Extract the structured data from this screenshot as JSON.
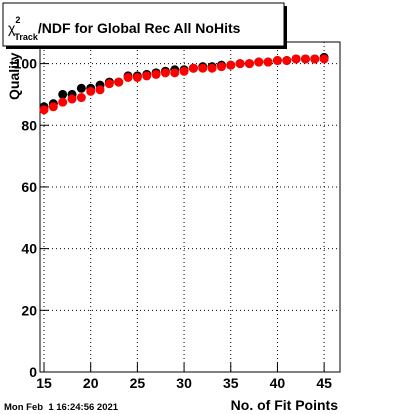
{
  "chart_data": {
    "type": "scatter",
    "title": {
      "symbol": "χ",
      "superscript": "2",
      "subscript": "Track",
      "text": "/NDF for Global Rec All NoHits"
    },
    "x_label": "No. of Fit Points",
    "y_label": "Quality",
    "timestamp": "Mon Feb  1 16:24:56 2021",
    "x": [
      15,
      16,
      17,
      18,
      19,
      20,
      21,
      22,
      23,
      24,
      25,
      26,
      27,
      28,
      29,
      30,
      31,
      32,
      33,
      34,
      35,
      36,
      37,
      38,
      39,
      40,
      41,
      42,
      43,
      44,
      45
    ],
    "series": [
      {
        "color": "#000000",
        "values": [
          86,
          87,
          90,
          90,
          92,
          92,
          93,
          94,
          94,
          96,
          96,
          96.5,
          97,
          97.5,
          98,
          98,
          98.5,
          99,
          99,
          99.5,
          99.5,
          100,
          100,
          100.5,
          100.5,
          101,
          101,
          101.5,
          101.5,
          101.5,
          102
        ]
      },
      {
        "color": "#ff0000",
        "values": [
          85,
          86,
          87.5,
          88.5,
          89,
          91,
          91.5,
          93.5,
          94,
          95.5,
          95.5,
          96,
          96.5,
          97,
          97,
          97.5,
          98.5,
          98.5,
          98.5,
          99,
          99.5,
          100,
          100,
          100.5,
          100.5,
          101,
          101,
          101.5,
          101.5,
          101.5,
          101.5
        ]
      }
    ],
    "xlim": [
      14.57,
      46.7
    ],
    "ylim": [
      0,
      107
    ],
    "xticks": [
      15,
      20,
      25,
      30,
      35,
      40,
      45
    ],
    "yticks": [
      0,
      20,
      40,
      60,
      80,
      100
    ],
    "grid": true
  }
}
